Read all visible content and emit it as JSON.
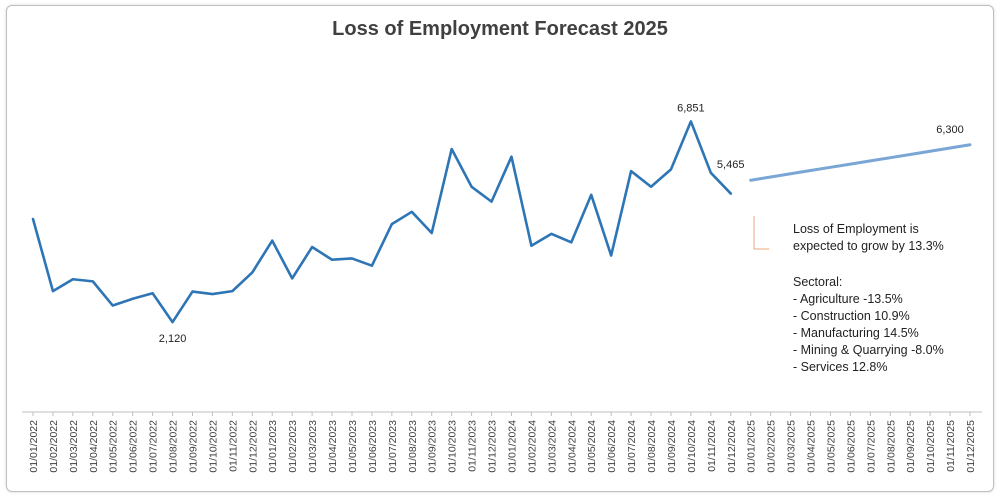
{
  "chart_data": {
    "type": "line",
    "title": "Loss of Employment Forecast 2025",
    "xlabel": "",
    "ylabel": "",
    "x": [
      "01/01/2022",
      "01/02/2022",
      "01/03/2022",
      "01/04/2022",
      "01/05/2022",
      "01/06/2022",
      "01/07/2022",
      "01/08/2022",
      "01/09/2022",
      "01/10/2022",
      "01/11/2022",
      "01/12/2022",
      "01/01/2023",
      "01/02/2023",
      "01/03/2023",
      "01/04/2023",
      "01/05/2023",
      "01/06/2023",
      "01/07/2023",
      "01/08/2023",
      "01/09/2023",
      "01/10/2023",
      "01/11/2023",
      "01/12/2023",
      "01/01/2024",
      "01/02/2024",
      "01/03/2024",
      "01/04/2024",
      "01/05/2024",
      "01/06/2024",
      "01/07/2024",
      "01/08/2024",
      "01/09/2024",
      "01/10/2024",
      "01/11/2024",
      "01/12/2024",
      "01/01/2025",
      "01/02/2025",
      "01/03/2025",
      "01/04/2025",
      "01/05/2025",
      "01/06/2025",
      "01/07/2025",
      "01/08/2025",
      "01/09/2025",
      "01/10/2025",
      "01/11/2025",
      "01/12/2025"
    ],
    "ylim": [
      0,
      8700
    ],
    "grid": false,
    "legend": "none",
    "series": [
      {
        "color": "#2E75B6",
        "values": [
          4550,
          2850,
          3130,
          3080,
          2510,
          2670,
          2800,
          2120,
          2840,
          2780,
          2850,
          3290,
          4040,
          3150,
          3890,
          3590,
          3620,
          3450,
          4430,
          4720,
          4220,
          6200,
          5310,
          4960,
          6020,
          3920,
          4200,
          4000,
          5120,
          3690,
          5680,
          5310,
          5720,
          6851,
          5640,
          5150,
          null,
          null,
          null,
          null,
          null,
          null,
          null,
          null,
          null,
          null,
          null,
          null
        ]
      },
      {
        "color": "#7AA6D6",
        "values": [
          null,
          null,
          null,
          null,
          null,
          null,
          null,
          null,
          null,
          null,
          null,
          null,
          null,
          null,
          null,
          null,
          null,
          null,
          null,
          null,
          null,
          null,
          null,
          null,
          null,
          null,
          null,
          null,
          null,
          null,
          null,
          null,
          null,
          null,
          null,
          null,
          5465,
          5541,
          5617,
          5693,
          5769,
          5845,
          5920,
          5996,
          6072,
          6148,
          6224,
          6300
        ]
      }
    ],
    "data_labels": [
      {
        "index": 7,
        "text": "2,120"
      },
      {
        "index": 33,
        "text": "6,851"
      },
      {
        "index": 36,
        "text": "5,465"
      },
      {
        "index": 47,
        "text": "6,300"
      }
    ],
    "annotation": {
      "lines": [
        "Loss of Employment is",
        "expected to grow by 13.3%",
        "",
        "Sectoral:",
        "- Agriculture -13.5%",
        "- Construction 10.9%",
        "- Manufacturing  14.5%",
        "- Mining & Quarrying -8.0%",
        "- Services 12.8%"
      ],
      "callout_color": "#E8A87C"
    }
  }
}
